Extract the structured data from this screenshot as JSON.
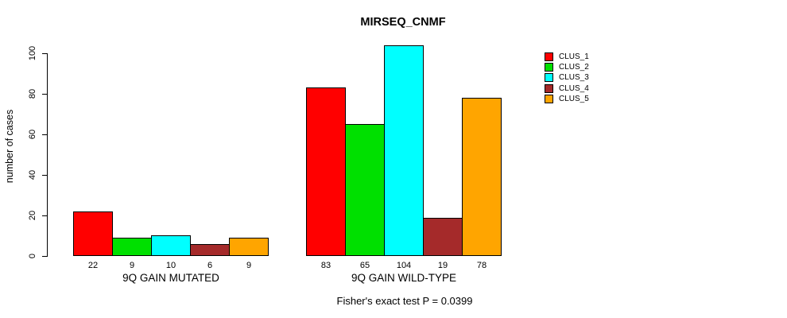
{
  "title": "MIRSEQ_CNMF",
  "ylabel": "number of cases",
  "footer": "Fisher's exact test P = 0.0399",
  "chart_data": {
    "type": "bar",
    "title": "MIRSEQ_CNMF",
    "xlabel": "",
    "ylabel": "number of cases",
    "yticks": [
      0,
      20,
      40,
      60,
      80,
      100
    ],
    "ylim": [
      0,
      104
    ],
    "grid": false,
    "legend_position": "right",
    "bar_value_labels_shown": true,
    "categories": [
      "9Q GAIN MUTATED",
      "9Q GAIN WILD-TYPE"
    ],
    "series": [
      {
        "name": "CLUS_1",
        "color": "#FF0000",
        "values": [
          22,
          83
        ]
      },
      {
        "name": "CLUS_2",
        "color": "#00E000",
        "values": [
          9,
          65
        ]
      },
      {
        "name": "CLUS_3",
        "color": "#00FFFF",
        "values": [
          10,
          104
        ]
      },
      {
        "name": "CLUS_4",
        "color": "#A52A2A",
        "values": [
          6,
          19
        ]
      },
      {
        "name": "CLUS_5",
        "color": "#FFA500",
        "values": [
          9,
          78
        ]
      }
    ],
    "annotation": "Fisher's exact test P = 0.0399"
  }
}
